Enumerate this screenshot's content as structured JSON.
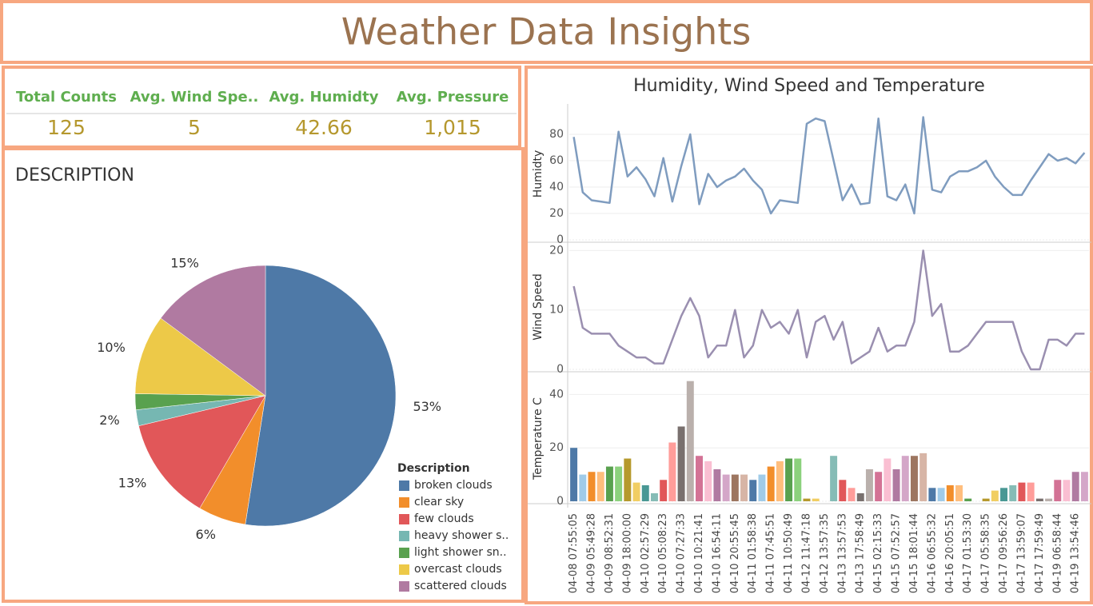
{
  "header": {
    "title": "Weather Data Insights"
  },
  "kpis": [
    {
      "label": "Total Counts",
      "value": "125"
    },
    {
      "label": "Avg. Wind Spe..",
      "value": "5"
    },
    {
      "label": "Avg. Humidty",
      "value": "42.66"
    },
    {
      "label": "Avg. Pressure",
      "value": "1,015"
    }
  ],
  "chart_data": [
    {
      "type": "pie",
      "title": "DESCRIPTION",
      "legend_title": "Description",
      "legend": "bottom-right",
      "categories": [
        "broken clouds",
        "clear sky",
        "few clouds",
        "heavy shower s..",
        "light shower sn..",
        "overcast clouds",
        "scattered clouds"
      ],
      "values": [
        53,
        6,
        13,
        2,
        2,
        10,
        15
      ],
      "value_labels": [
        "53%",
        "6%",
        "13%",
        "2%",
        null,
        "10%",
        "15%"
      ],
      "colors": [
        "#4e79a7",
        "#f28e2b",
        "#e15759",
        "#76b7b2",
        "#59a14f",
        "#edc948",
        "#b07aa1"
      ]
    },
    {
      "type": "panes",
      "title": "Humidity, Wind Speed and Temperature",
      "grid": true,
      "categories": [
        "04-08 07:55:05",
        null,
        "04-09 05:49:28",
        null,
        "04-09 08:52:31",
        null,
        "04-09 18:00:00",
        null,
        "04-10 02:57:29",
        null,
        "04-10 05:08:23",
        null,
        "04-10 07:27:33",
        null,
        "04-10 10:21:41",
        null,
        "04-10 16:54:11",
        null,
        "04-10 20:55:45",
        null,
        "04-11 01:58:38",
        null,
        "04-11 07:45:51",
        null,
        "04-11 10:50:49",
        null,
        "04-12 11:47:18",
        null,
        "04-12 13:57:35",
        null,
        "04-13 13:57:53",
        null,
        "04-13 17:58:49",
        null,
        "04-15 02:15:33",
        null,
        "04-15 07:52:57",
        null,
        "04-15 18:01:44",
        null,
        "04-16 06:55:32",
        null,
        "04-16 20:05:51",
        null,
        "04-17 01:53:30",
        null,
        "04-17 05:58:35",
        null,
        "04-17 09:56:26",
        null,
        "04-17 13:59:07",
        null,
        "04-17 17:59:49",
        null,
        "04-19 06:58:44",
        null,
        "04-19 13:54:46",
        null
      ],
      "panes": [
        {
          "type": "line",
          "y_label": "Humidty",
          "color": "#7f9cbf",
          "ylim": [
            0,
            100
          ],
          "yticks": [
            0,
            20,
            40,
            60,
            80
          ],
          "values": [
            78,
            36,
            30,
            29,
            28,
            82,
            48,
            55,
            46,
            33,
            62,
            29,
            56,
            80,
            27,
            50,
            40,
            45,
            48,
            54,
            45,
            38,
            20,
            30,
            29,
            28,
            88,
            92,
            90,
            60,
            30,
            42,
            27,
            28,
            92,
            33,
            30,
            42,
            20,
            93,
            38,
            36,
            48,
            52,
            52,
            55,
            60,
            48,
            40,
            34,
            34,
            45,
            55,
            65,
            60,
            62,
            58,
            66
          ]
        },
        {
          "type": "line",
          "y_label": "Wind Speed",
          "color": "#9a8fb0",
          "ylim": [
            0,
            21
          ],
          "yticks": [
            0,
            10,
            20
          ],
          "values": [
            14,
            7,
            6,
            6,
            6,
            4,
            3,
            2,
            2,
            1,
            1,
            5,
            9,
            12,
            9,
            2,
            4,
            4,
            10,
            2,
            4,
            10,
            7,
            8,
            6,
            10,
            2,
            8,
            9,
            5,
            8,
            1,
            2,
            3,
            7,
            3,
            4,
            4,
            8,
            20,
            9,
            11,
            3,
            3,
            4,
            6,
            8,
            8,
            8,
            8,
            3,
            0,
            0,
            5,
            5,
            4,
            6,
            6
          ]
        },
        {
          "type": "bar",
          "y_label": "Temperature C",
          "colors": [
            "#4e79a7",
            "#a0cbe8",
            "#f28e2b",
            "#ffbe7d",
            "#59a14f",
            "#8cd17d",
            "#b6992d",
            "#f1ce63",
            "#499894",
            "#86bcb6",
            "#e15759",
            "#ff9d9a",
            "#79706e",
            "#bab0ac",
            "#d37295",
            "#fabfd2",
            "#b07aa1",
            "#d4a6c8",
            "#9d7660",
            "#d7b5a6"
          ],
          "ylim": [
            0,
            47
          ],
          "yticks": [
            0,
            20,
            40
          ],
          "values": [
            20,
            10,
            11,
            11,
            13,
            13,
            16,
            7,
            6,
            3,
            8,
            22,
            28,
            45,
            17,
            15,
            12,
            10,
            10,
            10,
            8,
            10,
            13,
            15,
            16,
            16,
            1,
            1,
            0,
            17,
            8,
            5,
            3,
            12,
            11,
            16,
            12,
            17,
            17,
            18,
            5,
            5,
            6,
            6,
            1,
            0,
            1,
            4,
            5,
            6,
            7,
            7,
            1,
            1,
            8,
            8,
            11,
            11
          ]
        }
      ]
    }
  ]
}
